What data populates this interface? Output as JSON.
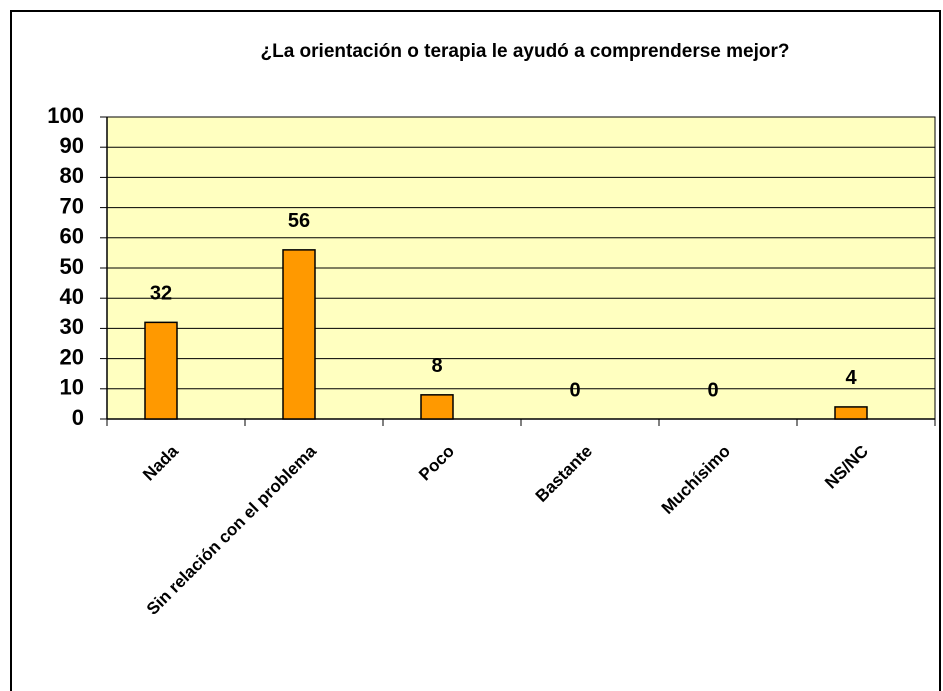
{
  "chart_data": {
    "type": "bar",
    "title": "¿La orientación o terapia le ayudó a comprenderse mejor?",
    "categories": [
      "Nada",
      "Sin relación con el problema",
      "Poco",
      "Bastante",
      "Muchísimo",
      "NS/NC"
    ],
    "values": [
      32,
      56,
      8,
      0,
      0,
      4
    ],
    "color": "#ff9900",
    "ylim": [
      0,
      100
    ],
    "yticks": [
      0,
      10,
      20,
      30,
      40,
      50,
      60,
      70,
      80,
      90,
      100
    ],
    "grid": true
  }
}
